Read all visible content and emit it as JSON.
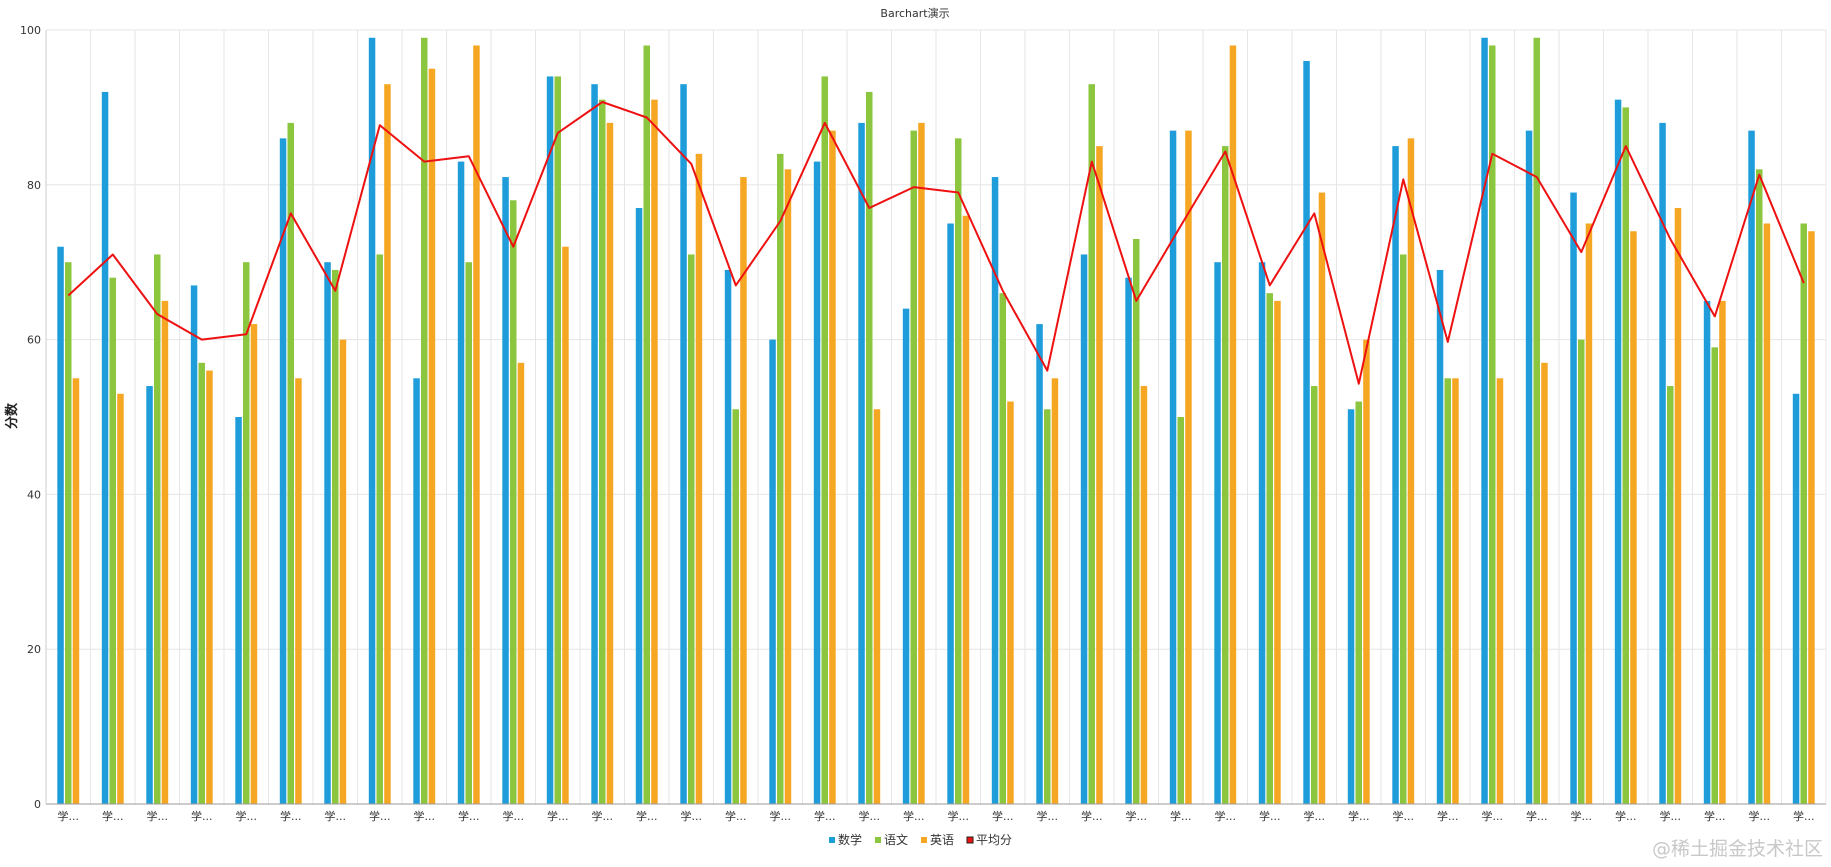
{
  "chart_data": {
    "type": "bar",
    "title": "Barchart演示",
    "ylabel": "分数",
    "xlabel": "",
    "ylim": [
      0,
      100
    ],
    "yticks": [
      0,
      20,
      40,
      60,
      80,
      100
    ],
    "grid": true,
    "legend_position": "bottom-center",
    "categories": [
      "学...",
      "学...",
      "学...",
      "学...",
      "学...",
      "学...",
      "学...",
      "学...",
      "学...",
      "学...",
      "学...",
      "学...",
      "学...",
      "学...",
      "学...",
      "学...",
      "学...",
      "学...",
      "学...",
      "学...",
      "学...",
      "学...",
      "学...",
      "学...",
      "学...",
      "学...",
      "学...",
      "学...",
      "学...",
      "学...",
      "学...",
      "学...",
      "学...",
      "学...",
      "学...",
      "学...",
      "学...",
      "学...",
      "学...",
      "学..."
    ],
    "series": [
      {
        "name": "数学",
        "color": "#1f9ddb",
        "values": [
          72,
          92,
          54,
          67,
          50,
          86,
          70,
          99,
          55,
          83,
          81,
          94,
          93,
          77,
          93,
          69,
          60,
          83,
          88,
          64,
          75,
          81,
          62,
          71,
          68,
          87,
          70,
          70,
          96,
          51,
          85,
          69,
          99,
          87,
          79,
          91,
          88,
          65,
          87,
          53
        ]
      },
      {
        "name": "语文",
        "color": "#8cc63f",
        "values": [
          70,
          68,
          71,
          57,
          70,
          88,
          69,
          71,
          99,
          70,
          78,
          94,
          91,
          98,
          71,
          51,
          84,
          94,
          92,
          87,
          86,
          66,
          51,
          93,
          73,
          50,
          85,
          66,
          54,
          52,
          71,
          55,
          98,
          99,
          60,
          90,
          54,
          59,
          82,
          75
        ]
      },
      {
        "name": "英语",
        "color": "#f5a623",
        "values": [
          55,
          53,
          65,
          56,
          62,
          55,
          60,
          93,
          95,
          98,
          57,
          72,
          88,
          91,
          84,
          81,
          82,
          87,
          51,
          88,
          76,
          52,
          55,
          85,
          54,
          87,
          98,
          65,
          79,
          60,
          86,
          55,
          55,
          57,
          75,
          74,
          77,
          65,
          75,
          74
        ]
      }
    ],
    "line_series": {
      "name": "平均分",
      "color": "#ee1111",
      "type": "line",
      "values": [
        65.7,
        71,
        63.3,
        60,
        60.7,
        76.3,
        66.3,
        87.7,
        83,
        83.7,
        72,
        86.7,
        90.7,
        88.7,
        82.7,
        67,
        75.3,
        88,
        77,
        79.7,
        79,
        66.3,
        56,
        83,
        65,
        74.7,
        84.3,
        67,
        76.3,
        54.3,
        80.7,
        59.7,
        84,
        81,
        71.3,
        85,
        73,
        63,
        81.3,
        67.3
      ]
    }
  },
  "watermark": "@稀土掘金技术社区"
}
